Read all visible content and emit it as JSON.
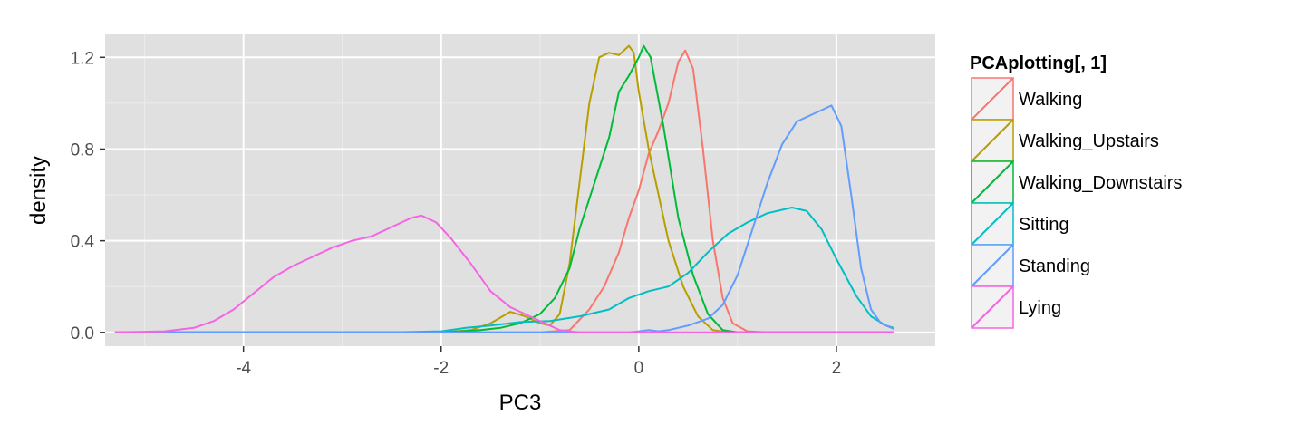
{
  "chart_data": {
    "type": "area",
    "title": "",
    "xlabel": "PC3",
    "ylabel": "density",
    "xlim": [
      -5.4,
      3.0
    ],
    "ylim": [
      -0.06,
      1.3
    ],
    "x_ticks": [
      -4,
      -2,
      0,
      2
    ],
    "x_tick_labels": [
      "-4",
      "-2",
      "0",
      "2"
    ],
    "y_ticks": [
      0.0,
      0.4,
      0.8,
      1.2
    ],
    "y_tick_labels": [
      "0.0",
      "0.4",
      "0.8",
      "1.2"
    ],
    "grid": true,
    "panel_background": "#e0e0e0",
    "legend": {
      "title": "PCAplotting[, 1]",
      "position": "right",
      "entries": [
        "Walking",
        "Walking_Upstairs",
        "Walking_Downstairs",
        "Sitting",
        "Standing",
        "Lying"
      ]
    },
    "series": [
      {
        "name": "Walking",
        "color": "#F8766D",
        "points": [
          [
            -5.3,
            0
          ],
          [
            -2.0,
            0
          ],
          [
            -1.0,
            0
          ],
          [
            -0.7,
            0.01
          ],
          [
            -0.5,
            0.1
          ],
          [
            -0.35,
            0.2
          ],
          [
            -0.2,
            0.35
          ],
          [
            -0.1,
            0.5
          ],
          [
            0.0,
            0.62
          ],
          [
            0.1,
            0.78
          ],
          [
            0.2,
            0.88
          ],
          [
            0.3,
            1.0
          ],
          [
            0.4,
            1.18
          ],
          [
            0.47,
            1.23
          ],
          [
            0.55,
            1.15
          ],
          [
            0.65,
            0.8
          ],
          [
            0.75,
            0.4
          ],
          [
            0.85,
            0.15
          ],
          [
            0.95,
            0.04
          ],
          [
            1.1,
            0.005
          ],
          [
            1.3,
            0
          ],
          [
            2.58,
            0
          ]
        ]
      },
      {
        "name": "Walking_Upstairs",
        "color": "#B79F00",
        "points": [
          [
            -5.3,
            0
          ],
          [
            -2.0,
            0
          ],
          [
            -1.7,
            0.01
          ],
          [
            -1.5,
            0.04
          ],
          [
            -1.3,
            0.09
          ],
          [
            -1.15,
            0.07
          ],
          [
            -1.0,
            0.04
          ],
          [
            -0.9,
            0.03
          ],
          [
            -0.8,
            0.08
          ],
          [
            -0.7,
            0.3
          ],
          [
            -0.6,
            0.65
          ],
          [
            -0.5,
            1.0
          ],
          [
            -0.4,
            1.2
          ],
          [
            -0.3,
            1.22
          ],
          [
            -0.2,
            1.21
          ],
          [
            -0.1,
            1.25
          ],
          [
            -0.05,
            1.22
          ],
          [
            0.0,
            1.05
          ],
          [
            0.1,
            0.8
          ],
          [
            0.2,
            0.6
          ],
          [
            0.3,
            0.4
          ],
          [
            0.45,
            0.2
          ],
          [
            0.6,
            0.07
          ],
          [
            0.75,
            0.01
          ],
          [
            0.9,
            0
          ],
          [
            2.58,
            0
          ]
        ]
      },
      {
        "name": "Walking_Downstairs",
        "color": "#00BA38",
        "points": [
          [
            -5.3,
            0
          ],
          [
            -2.0,
            0
          ],
          [
            -1.6,
            0.01
          ],
          [
            -1.4,
            0.02
          ],
          [
            -1.2,
            0.04
          ],
          [
            -1.0,
            0.08
          ],
          [
            -0.85,
            0.15
          ],
          [
            -0.7,
            0.28
          ],
          [
            -0.6,
            0.45
          ],
          [
            -0.45,
            0.65
          ],
          [
            -0.3,
            0.85
          ],
          [
            -0.2,
            1.05
          ],
          [
            -0.1,
            1.12
          ],
          [
            0.0,
            1.2
          ],
          [
            0.05,
            1.25
          ],
          [
            0.12,
            1.2
          ],
          [
            0.25,
            0.9
          ],
          [
            0.4,
            0.5
          ],
          [
            0.55,
            0.25
          ],
          [
            0.7,
            0.08
          ],
          [
            0.85,
            0.01
          ],
          [
            1.0,
            0
          ],
          [
            2.58,
            0
          ]
        ]
      },
      {
        "name": "Sitting",
        "color": "#00BFC4",
        "points": [
          [
            -5.3,
            0
          ],
          [
            -2.5,
            0
          ],
          [
            -2.0,
            0.005
          ],
          [
            -1.75,
            0.02
          ],
          [
            -1.5,
            0.03
          ],
          [
            -1.2,
            0.045
          ],
          [
            -0.9,
            0.05
          ],
          [
            -0.6,
            0.07
          ],
          [
            -0.3,
            0.1
          ],
          [
            -0.1,
            0.15
          ],
          [
            0.1,
            0.18
          ],
          [
            0.3,
            0.2
          ],
          [
            0.5,
            0.26
          ],
          [
            0.7,
            0.35
          ],
          [
            0.9,
            0.43
          ],
          [
            1.1,
            0.48
          ],
          [
            1.3,
            0.52
          ],
          [
            1.55,
            0.545
          ],
          [
            1.7,
            0.53
          ],
          [
            1.85,
            0.45
          ],
          [
            2.0,
            0.32
          ],
          [
            2.2,
            0.16
          ],
          [
            2.35,
            0.07
          ],
          [
            2.5,
            0.03
          ],
          [
            2.58,
            0.02
          ]
        ]
      },
      {
        "name": "Standing",
        "color": "#619CFF",
        "points": [
          [
            -5.3,
            0
          ],
          [
            -0.4,
            0
          ],
          [
            -0.1,
            0
          ],
          [
            0.0,
            0.005
          ],
          [
            0.1,
            0.01
          ],
          [
            0.2,
            0.005
          ],
          [
            0.3,
            0.01
          ],
          [
            0.5,
            0.03
          ],
          [
            0.7,
            0.06
          ],
          [
            0.85,
            0.12
          ],
          [
            1.0,
            0.25
          ],
          [
            1.15,
            0.45
          ],
          [
            1.3,
            0.65
          ],
          [
            1.45,
            0.82
          ],
          [
            1.6,
            0.92
          ],
          [
            1.75,
            0.95
          ],
          [
            1.85,
            0.97
          ],
          [
            1.95,
            0.99
          ],
          [
            2.05,
            0.9
          ],
          [
            2.15,
            0.6
          ],
          [
            2.25,
            0.28
          ],
          [
            2.35,
            0.1
          ],
          [
            2.45,
            0.04
          ],
          [
            2.58,
            0.015
          ]
        ]
      },
      {
        "name": "Lying",
        "color": "#F564E3",
        "points": [
          [
            -5.3,
            0
          ],
          [
            -4.8,
            0.005
          ],
          [
            -4.5,
            0.02
          ],
          [
            -4.3,
            0.05
          ],
          [
            -4.1,
            0.1
          ],
          [
            -3.9,
            0.17
          ],
          [
            -3.7,
            0.24
          ],
          [
            -3.5,
            0.29
          ],
          [
            -3.3,
            0.33
          ],
          [
            -3.1,
            0.37
          ],
          [
            -2.9,
            0.4
          ],
          [
            -2.7,
            0.42
          ],
          [
            -2.5,
            0.46
          ],
          [
            -2.3,
            0.5
          ],
          [
            -2.2,
            0.51
          ],
          [
            -2.05,
            0.48
          ],
          [
            -1.9,
            0.41
          ],
          [
            -1.7,
            0.3
          ],
          [
            -1.5,
            0.18
          ],
          [
            -1.3,
            0.11
          ],
          [
            -1.1,
            0.07
          ],
          [
            -0.95,
            0.04
          ],
          [
            -0.8,
            0.01
          ],
          [
            -0.6,
            0
          ],
          [
            2.58,
            0
          ]
        ]
      }
    ]
  }
}
